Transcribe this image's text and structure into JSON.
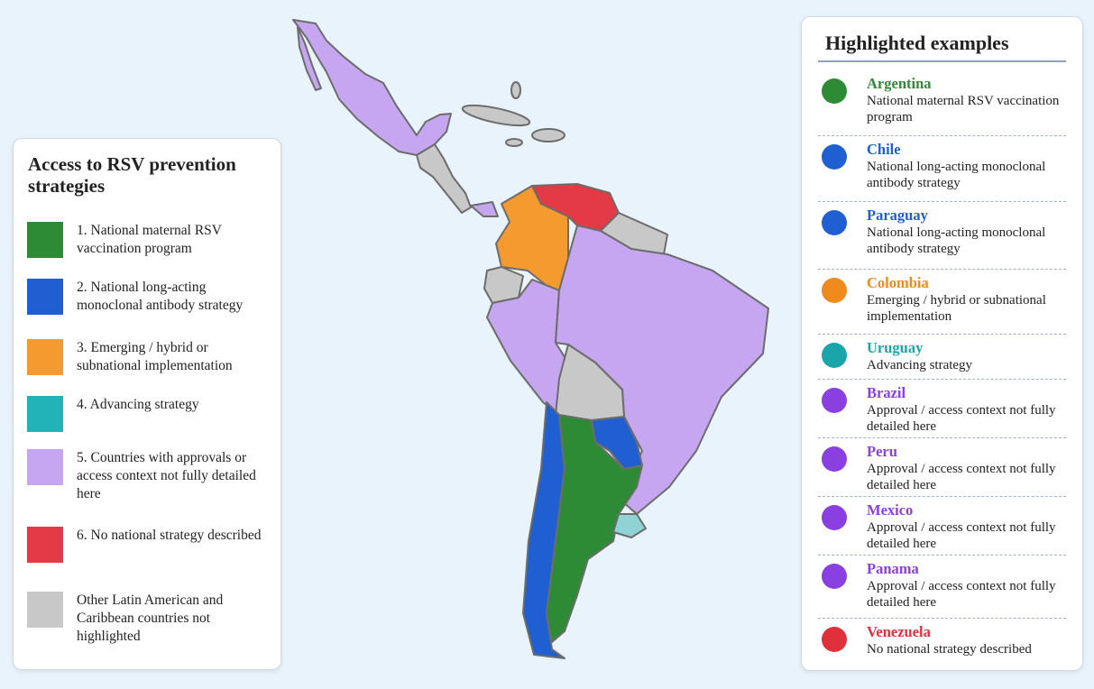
{
  "legend": {
    "title": "Access to RSV prevention strategies",
    "items": [
      {
        "label": "1. National maternal RSV vaccination program",
        "color": "#2e8b35"
      },
      {
        "label": "2. National long-acting monoclonal antibody strategy",
        "color": "#1f5fd1"
      },
      {
        "label": "3. Emerging / hybrid or subnational implementation",
        "color": "#f59a2f"
      },
      {
        "label": "4. Advancing strategy",
        "color": "#22b3b9"
      },
      {
        "label": "5. Countries with approvals or access context not fully detailed here",
        "color": "#c6a6f0"
      },
      {
        "label": "6. No national strategy described",
        "color": "#e33a45"
      },
      {
        "label": "Other Latin American and Caribbean countries not highlighted",
        "color": "#c8c8c8"
      }
    ]
  },
  "examples": {
    "title": "Highlighted examples",
    "items": [
      {
        "name": "Argentina",
        "description": "National maternal RSV vaccination program",
        "color": "#2e8b35"
      },
      {
        "name": "Chile",
        "description": "National long-acting monoclonal antibody strategy",
        "color": "#1f5fd1"
      },
      {
        "name": "Paraguay",
        "description": "National long-acting monoclonal antibody strategy",
        "color": "#1f5fd1"
      },
      {
        "name": "Colombia",
        "description": "Emerging / hybrid or subnational implementation",
        "color": "#f08a1c"
      },
      {
        "name": "Uruguay",
        "description": "Advancing strategy",
        "color": "#1aa5ab"
      },
      {
        "name": "Brazil",
        "description": "Approval / access context not fully detailed here",
        "color": "#8a3fe0"
      },
      {
        "name": "Peru",
        "description": "Approval / access context not fully detailed here",
        "color": "#8a3fe0"
      },
      {
        "name": "Mexico",
        "description": "Approval / access context not fully detailed here",
        "color": "#8a3fe0"
      },
      {
        "name": "Panama",
        "description": "Approval / access context not fully detailed here",
        "color": "#8a3fe0"
      },
      {
        "name": "Venezuela",
        "description": "No national strategy described",
        "color": "#e0303c"
      }
    ]
  }
}
